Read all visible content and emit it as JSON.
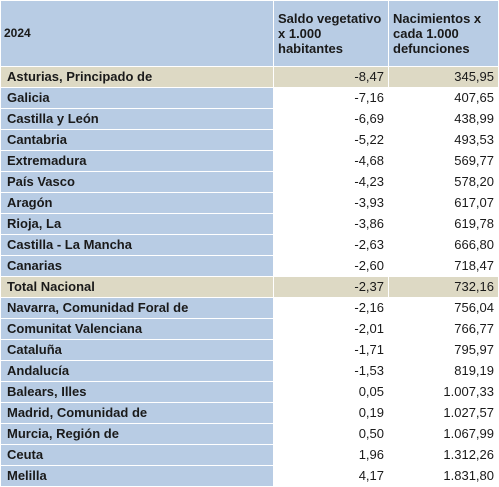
{
  "table": {
    "header": {
      "year": "2024",
      "col1": "Saldo vegetativo x 1.000 habitantes",
      "col2": "Nacimientos x cada 1.000 defunciones"
    },
    "rows": [
      {
        "region": "Asturias, Principado de",
        "saldo": "-8,47",
        "nacimientos": "345,95",
        "highlight": true
      },
      {
        "region": "Galicia",
        "saldo": "-7,16",
        "nacimientos": "407,65",
        "highlight": false
      },
      {
        "region": "Castilla y León",
        "saldo": "-6,69",
        "nacimientos": "438,99",
        "highlight": false
      },
      {
        "region": "Cantabria",
        "saldo": "-5,22",
        "nacimientos": "493,53",
        "highlight": false
      },
      {
        "region": "Extremadura",
        "saldo": "-4,68",
        "nacimientos": "569,77",
        "highlight": false
      },
      {
        "region": "País Vasco",
        "saldo": "-4,23",
        "nacimientos": "578,20",
        "highlight": false
      },
      {
        "region": "Aragón",
        "saldo": "-3,93",
        "nacimientos": "617,07",
        "highlight": false
      },
      {
        "region": "Rioja, La",
        "saldo": "-3,86",
        "nacimientos": "619,78",
        "highlight": false
      },
      {
        "region": "Castilla - La Mancha",
        "saldo": "-2,63",
        "nacimientos": "666,80",
        "highlight": false
      },
      {
        "region": "Canarias",
        "saldo": "-2,60",
        "nacimientos": "718,47",
        "highlight": false
      },
      {
        "region": "Total Nacional",
        "saldo": "-2,37",
        "nacimientos": "732,16",
        "highlight": true
      },
      {
        "region": "Navarra, Comunidad Foral de",
        "saldo": "-2,16",
        "nacimientos": "756,04",
        "highlight": false
      },
      {
        "region": "Comunitat Valenciana",
        "saldo": "-2,01",
        "nacimientos": "766,77",
        "highlight": false
      },
      {
        "region": "Cataluña",
        "saldo": "-1,71",
        "nacimientos": "795,97",
        "highlight": false
      },
      {
        "region": "Andalucía",
        "saldo": "-1,53",
        "nacimientos": "819,19",
        "highlight": false
      },
      {
        "region": "Balears, Illes",
        "saldo": "0,05",
        "nacimientos": "1.007,33",
        "highlight": false
      },
      {
        "region": "Madrid, Comunidad de",
        "saldo": "0,19",
        "nacimientos": "1.027,57",
        "highlight": false
      },
      {
        "region": "Murcia, Región de",
        "saldo": "0,50",
        "nacimientos": "1.067,99",
        "highlight": false
      },
      {
        "region": "Ceuta",
        "saldo": "1,96",
        "nacimientos": "1.312,26",
        "highlight": false
      },
      {
        "region": "Melilla",
        "saldo": "4,17",
        "nacimientos": "1.831,80",
        "highlight": false
      }
    ]
  },
  "colors": {
    "header_bg": "#b8cce4",
    "highlight_bg": "#ddd9c4"
  }
}
